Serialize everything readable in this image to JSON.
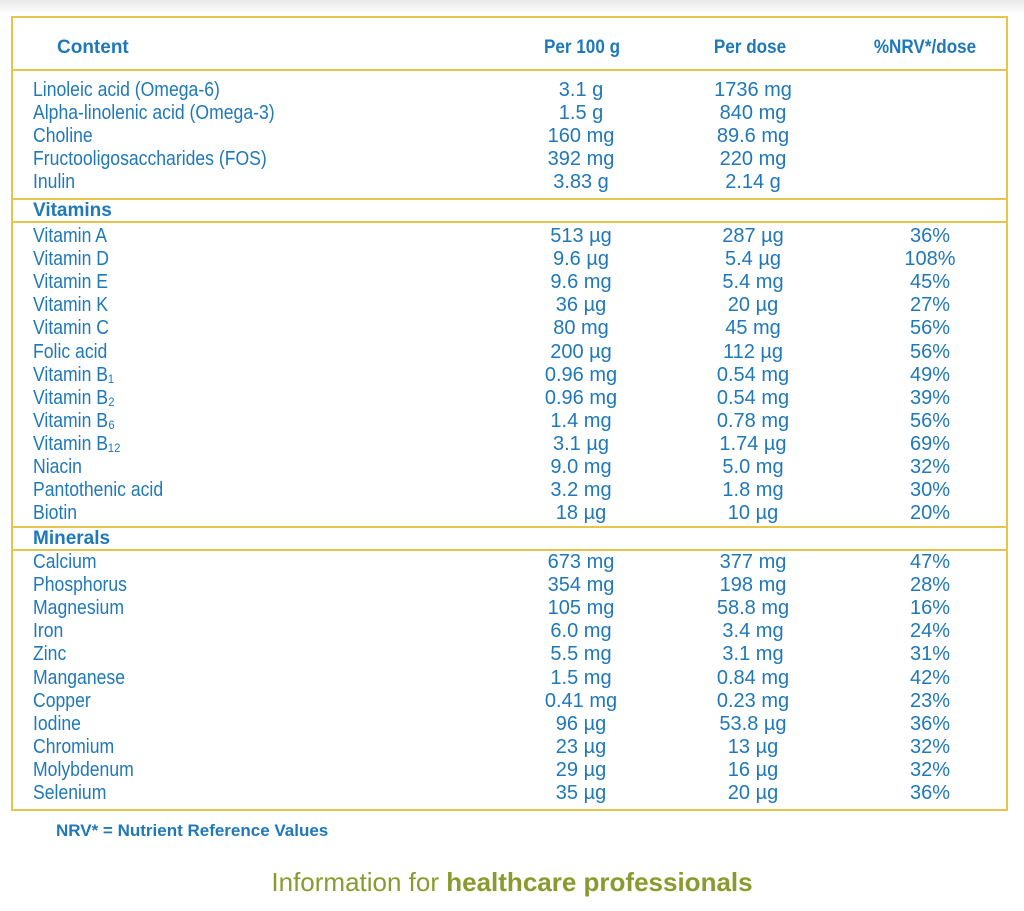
{
  "header": {
    "content": "Content",
    "per100": "Per 100 g",
    "perdose": "Per dose",
    "nrv": "%NRV*/dose"
  },
  "general": [
    {
      "name": "Linoleic acid (Omega-6)",
      "per100": "3.1 g",
      "perdose": "1736 mg",
      "nrv": ""
    },
    {
      "name": "Alpha-linolenic acid (Omega-3)",
      "per100": "1.5 g",
      "perdose": "840 mg",
      "nrv": ""
    },
    {
      "name": "Choline",
      "per100": "160 mg",
      "perdose": "89.6 mg",
      "nrv": ""
    },
    {
      "name": "Fructooligosaccharides (FOS)",
      "per100": "392 mg",
      "perdose": "220 mg",
      "nrv": ""
    },
    {
      "name": "Inulin",
      "per100": "3.83 g",
      "perdose": "2.14 g",
      "nrv": ""
    }
  ],
  "vitamins_title": "Vitamins",
  "vitamins": [
    {
      "name": "Vitamin A",
      "per100": "513 µg",
      "perdose": "287 µg",
      "nrv": "36%"
    },
    {
      "name": "Vitamin D",
      "per100": "9.6 µg",
      "perdose": "5.4 µg",
      "nrv": "108%"
    },
    {
      "name": "Vitamin E",
      "per100": "9.6 mg",
      "perdose": "5.4 mg",
      "nrv": "45%"
    },
    {
      "name": "Vitamin K",
      "per100": "36 µg",
      "perdose": "20 µg",
      "nrv": "27%"
    },
    {
      "name": "Vitamin C",
      "per100": "80 mg",
      "perdose": "45 mg",
      "nrv": "56%"
    },
    {
      "name": "Folic acid",
      "per100": "200 µg",
      "perdose": "112 µg",
      "nrv": "56%"
    },
    {
      "name": "Vitamin B₁",
      "per100": "0.96 mg",
      "perdose": "0.54 mg",
      "nrv": "49%"
    },
    {
      "name": "Vitamin B₂",
      "per100": "0.96 mg",
      "perdose": "0.54 mg",
      "nrv": "39%"
    },
    {
      "name": "Vitamin B₆",
      "per100": "1.4 mg",
      "perdose": "0.78 mg",
      "nrv": "56%"
    },
    {
      "name": "Vitamin B₁₂",
      "per100": "3.1 µg",
      "perdose": "1.74 µg",
      "nrv": "69%"
    },
    {
      "name": "Niacin",
      "per100": "9.0 mg",
      "perdose": "5.0 mg",
      "nrv": "32%"
    },
    {
      "name": "Pantothenic acid",
      "per100": "3.2 mg",
      "perdose": "1.8 mg",
      "nrv": "30%"
    },
    {
      "name": "Biotin",
      "per100": "18 µg",
      "perdose": "10 µg",
      "nrv": "20%"
    }
  ],
  "minerals_title": "Minerals",
  "minerals": [
    {
      "name": "Calcium",
      "per100": "673 mg",
      "perdose": "377 mg",
      "nrv": "47%"
    },
    {
      "name": "Phosphorus",
      "per100": "354 mg",
      "perdose": "198 mg",
      "nrv": "28%"
    },
    {
      "name": "Magnesium",
      "per100": "105 mg",
      "perdose": "58.8 mg",
      "nrv": "16%"
    },
    {
      "name": "Iron",
      "per100": "6.0 mg",
      "perdose": "3.4 mg",
      "nrv": "24%"
    },
    {
      "name": "Zinc",
      "per100": "5.5 mg",
      "perdose": "3.1 mg",
      "nrv": "31%"
    },
    {
      "name": "Manganese",
      "per100": "1.5 mg",
      "perdose": "0.84 mg",
      "nrv": "42%"
    },
    {
      "name": "Copper",
      "per100": "0.41 mg",
      "perdose": "0.23 mg",
      "nrv": "23%"
    },
    {
      "name": "Iodine",
      "per100": "96 µg",
      "perdose": "53.8 µg",
      "nrv": "36%"
    },
    {
      "name": "Chromium",
      "per100": "23 µg",
      "perdose": "13 µg",
      "nrv": "32%"
    },
    {
      "name": "Molybdenum",
      "per100": "29 µg",
      "perdose": "16 µg",
      "nrv": "32%"
    },
    {
      "name": "Selenium",
      "per100": "35 µg",
      "perdose": "20 µg",
      "nrv": "36%"
    }
  ],
  "footnote": "NRV* = Nutrient Reference Values",
  "tagline_light": "Information for ",
  "tagline_bold": "healthcare professionals",
  "colors": {
    "text": "#1f78b8",
    "border": "#e8c44a",
    "tagline": "#8a9a2e"
  }
}
